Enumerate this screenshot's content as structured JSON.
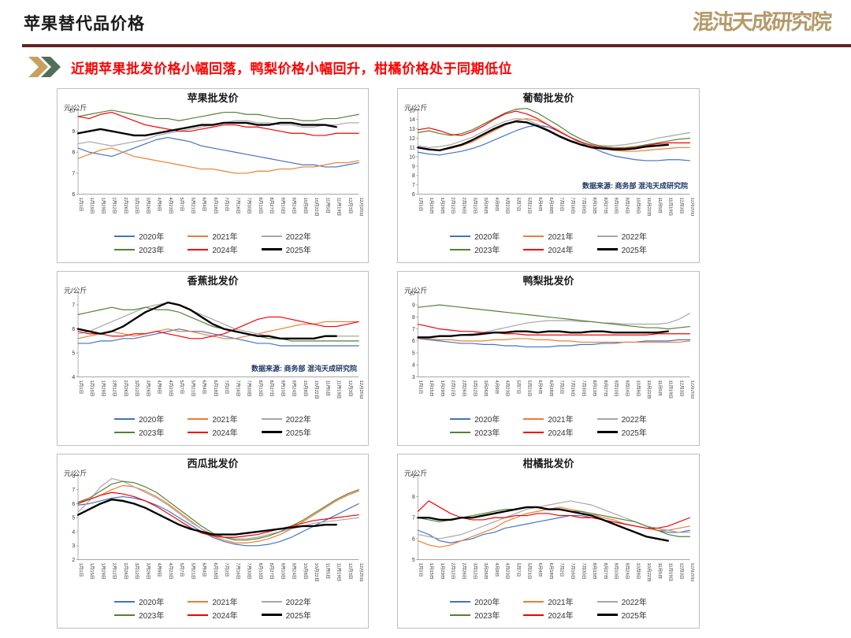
{
  "header": {
    "title": "苹果替代品价格",
    "logo_text": "混沌天成研究院",
    "divider_color": "#5e2620",
    "chevron_colors": [
      "#c9a05e",
      "#50705c"
    ]
  },
  "headline": {
    "text": "近期苹果批发价格小幅回落，鸭梨价格小幅回升，柑橘价格处于同期低位",
    "color": "#fe0000"
  },
  "chart_data": {
    "type": "line",
    "unit": "元/公斤",
    "source": "数据来源: 商务部 混沌天成研究院",
    "legend_position": "bottom",
    "grid": false,
    "categories": [
      "1月1日",
      "1月15日",
      "1月29日",
      "2月12日",
      "2月26日",
      "3月12日",
      "3月26日",
      "4月9日",
      "4月23日",
      "5月7日",
      "5月21日",
      "6月4日",
      "6月18日",
      "7月2日",
      "7月16日",
      "7月30日",
      "8月13日",
      "8月27日",
      "9月10日",
      "9月24日",
      "10月8日",
      "10月22日",
      "11月5日",
      "11月19日",
      "12月3日",
      "12月20日"
    ],
    "legend": [
      {
        "name": "2020年",
        "color": "#4472c4",
        "width": 1.2
      },
      {
        "name": "2021年",
        "color": "#ed7d31",
        "width": 1.2
      },
      {
        "name": "2022年",
        "color": "#a6a6a6",
        "width": 1.2
      },
      {
        "name": "2023年",
        "color": "#538135",
        "width": 1.2
      },
      {
        "name": "2024年",
        "color": "#f40000",
        "width": 1.2
      },
      {
        "name": "2025年",
        "color": "#000000",
        "width": 2.4
      }
    ],
    "charts": [
      {
        "title": "苹果批发价",
        "ylim": [
          6,
          10
        ],
        "show_source": false,
        "series": {
          "2020年": [
            8.2,
            8.0,
            7.9,
            7.8,
            8.0,
            8.2,
            8.4,
            8.6,
            8.7,
            8.6,
            8.5,
            8.3,
            8.2,
            8.1,
            8.0,
            7.9,
            7.8,
            7.7,
            7.6,
            7.5,
            7.4,
            7.4,
            7.3,
            7.3,
            7.4,
            7.5
          ],
          "2021年": [
            7.7,
            7.9,
            8.1,
            8.2,
            8.0,
            7.8,
            7.7,
            7.6,
            7.5,
            7.4,
            7.3,
            7.2,
            7.2,
            7.1,
            7.0,
            7.0,
            7.1,
            7.1,
            7.2,
            7.2,
            7.3,
            7.3,
            7.4,
            7.5,
            7.5,
            7.6
          ],
          "2022年": [
            8.4,
            8.5,
            8.4,
            8.3,
            8.4,
            8.5,
            8.6,
            8.8,
            8.9,
            9.0,
            9.1,
            9.2,
            9.3,
            9.4,
            9.5,
            9.5,
            9.4,
            9.4,
            9.3,
            9.3,
            9.2,
            9.2,
            9.3,
            9.3,
            9.4,
            9.4
          ],
          "2023年": [
            9.7,
            9.8,
            9.9,
            10.0,
            9.9,
            9.8,
            9.7,
            9.6,
            9.6,
            9.5,
            9.6,
            9.7,
            9.8,
            9.9,
            9.9,
            9.8,
            9.8,
            9.7,
            9.6,
            9.6,
            9.5,
            9.5,
            9.6,
            9.6,
            9.7,
            9.8
          ],
          "2024年": [
            9.7,
            9.6,
            9.8,
            9.9,
            9.7,
            9.5,
            9.3,
            9.2,
            9.1,
            9.0,
            9.0,
            9.1,
            9.2,
            9.3,
            9.3,
            9.2,
            9.2,
            9.1,
            9.0,
            8.9,
            8.9,
            8.8,
            8.8,
            8.9,
            8.9,
            8.9
          ],
          "2025年": [
            8.9,
            9.0,
            9.1,
            9.0,
            8.9,
            8.8,
            8.8,
            8.9,
            9.0,
            9.1,
            9.2,
            9.3,
            9.3,
            9.4,
            9.4,
            9.4,
            9.3,
            9.3,
            9.4,
            9.4,
            9.3,
            9.3,
            9.3,
            9.2,
            null,
            null
          ]
        }
      },
      {
        "title": "葡萄批发价",
        "ylim": [
          6,
          15
        ],
        "show_source": true,
        "series": {
          "2020年": [
            10.5,
            10.3,
            10.2,
            10.4,
            10.6,
            10.9,
            11.3,
            11.8,
            12.3,
            12.8,
            13.2,
            13.4,
            13.2,
            12.7,
            12.1,
            11.5,
            11.0,
            10.5,
            10.1,
            9.9,
            9.7,
            9.6,
            9.6,
            9.7,
            9.7,
            9.6
          ],
          "2021年": [
            11.0,
            10.8,
            10.7,
            10.9,
            11.2,
            11.6,
            12.2,
            12.8,
            13.4,
            13.9,
            14.1,
            13.9,
            13.4,
            12.8,
            12.1,
            11.6,
            11.2,
            10.9,
            10.7,
            10.6,
            10.6,
            10.7,
            10.8,
            10.9,
            11.0,
            11.0
          ],
          "2022年": [
            11.2,
            11.0,
            11.1,
            11.3,
            11.7,
            12.1,
            12.7,
            13.3,
            13.8,
            14.1,
            14.0,
            13.5,
            12.9,
            12.3,
            11.8,
            11.5,
            11.3,
            11.2,
            11.2,
            11.3,
            11.5,
            11.7,
            12.0,
            12.2,
            12.4,
            12.6
          ],
          "2023年": [
            12.6,
            12.8,
            12.5,
            12.3,
            12.5,
            12.9,
            13.5,
            14.1,
            14.7,
            15.1,
            15.2,
            14.7,
            14.0,
            13.3,
            12.5,
            11.9,
            11.4,
            11.1,
            11.0,
            11.0,
            11.1,
            11.3,
            11.5,
            11.7,
            11.9,
            12.0
          ],
          "2024年": [
            12.9,
            13.1,
            12.8,
            12.4,
            12.3,
            12.7,
            13.3,
            14.0,
            14.6,
            14.9,
            14.6,
            14.1,
            13.4,
            12.7,
            12.1,
            11.6,
            11.2,
            11.0,
            10.9,
            10.9,
            11.0,
            11.2,
            11.4,
            11.5,
            11.5,
            11.5
          ],
          "2025年": [
            11.0,
            10.8,
            10.7,
            11.0,
            11.3,
            11.8,
            12.4,
            13.0,
            13.5,
            13.8,
            13.7,
            13.3,
            12.8,
            12.2,
            11.7,
            11.3,
            11.0,
            10.9,
            10.8,
            10.8,
            10.9,
            11.1,
            11.2,
            11.3,
            null,
            null
          ]
        }
      },
      {
        "title": "香蕉批发价",
        "ylim": [
          4,
          7.5
        ],
        "show_source": true,
        "series": {
          "2020年": [
            5.4,
            5.4,
            5.5,
            5.5,
            5.6,
            5.6,
            5.7,
            5.8,
            5.9,
            6.0,
            5.9,
            5.9,
            5.8,
            5.7,
            5.6,
            5.5,
            5.4,
            5.4,
            5.3,
            5.3,
            5.3,
            5.3,
            5.3,
            5.3,
            5.3,
            5.3
          ],
          "2021年": [
            5.6,
            5.7,
            5.8,
            5.9,
            5.8,
            5.7,
            5.8,
            5.9,
            6.0,
            5.9,
            5.9,
            5.8,
            5.7,
            5.6,
            5.6,
            5.7,
            5.8,
            5.9,
            6.0,
            6.1,
            6.2,
            6.2,
            6.3,
            6.3,
            6.3,
            6.3
          ],
          "2022年": [
            5.8,
            5.9,
            6.1,
            6.3,
            6.5,
            6.7,
            6.9,
            7.0,
            7.1,
            7.0,
            6.8,
            6.6,
            6.4,
            6.2,
            6.0,
            5.9,
            5.8,
            5.7,
            5.6,
            5.6,
            5.6,
            5.6,
            5.7,
            5.7,
            5.7,
            5.7
          ],
          "2023年": [
            6.6,
            6.7,
            6.8,
            6.9,
            6.8,
            6.8,
            6.9,
            6.8,
            6.8,
            6.7,
            6.5,
            6.3,
            6.1,
            6.0,
            5.9,
            5.8,
            5.7,
            5.6,
            5.6,
            5.5,
            5.5,
            5.5,
            5.5,
            5.5,
            5.5,
            5.5
          ],
          "2024年": [
            5.9,
            5.8,
            5.8,
            5.7,
            5.7,
            5.8,
            5.8,
            5.9,
            5.8,
            5.7,
            5.6,
            5.6,
            5.7,
            5.8,
            6.0,
            6.2,
            6.4,
            6.5,
            6.5,
            6.4,
            6.3,
            6.2,
            6.1,
            6.1,
            6.2,
            6.3
          ],
          "2025年": [
            6.0,
            5.9,
            5.8,
            5.9,
            6.1,
            6.4,
            6.7,
            6.9,
            7.1,
            7.0,
            6.8,
            6.5,
            6.2,
            6.0,
            5.9,
            5.8,
            5.7,
            5.7,
            5.6,
            5.6,
            5.6,
            5.6,
            5.7,
            5.7,
            null,
            null
          ]
        }
      },
      {
        "title": "鸭梨批发价",
        "ylim": [
          3,
          10
        ],
        "show_source": false,
        "series": {
          "2020年": [
            6.2,
            6.1,
            6.0,
            5.9,
            5.8,
            5.8,
            5.7,
            5.7,
            5.6,
            5.6,
            5.5,
            5.5,
            5.5,
            5.6,
            5.6,
            5.7,
            5.7,
            5.8,
            5.8,
            5.9,
            5.9,
            6.0,
            6.0,
            6.0,
            6.1,
            6.1
          ],
          "2021年": [
            6.2,
            6.2,
            6.1,
            6.1,
            6.0,
            6.0,
            6.0,
            6.1,
            6.1,
            6.2,
            6.2,
            6.1,
            6.1,
            6.0,
            6.0,
            5.9,
            5.9,
            5.9,
            5.9,
            5.9,
            5.9,
            5.9,
            5.9,
            5.9,
            5.9,
            6.0
          ],
          "2022年": [
            6.3,
            6.3,
            6.4,
            6.4,
            6.5,
            6.6,
            6.7,
            6.9,
            7.1,
            7.3,
            7.5,
            7.6,
            7.7,
            7.7,
            7.7,
            7.6,
            7.6,
            7.5,
            7.5,
            7.4,
            7.4,
            7.4,
            7.4,
            7.5,
            7.8,
            8.3
          ],
          "2023年": [
            8.8,
            8.9,
            9.0,
            8.9,
            8.8,
            8.7,
            8.6,
            8.5,
            8.4,
            8.3,
            8.2,
            8.1,
            8.0,
            7.9,
            7.8,
            7.7,
            7.6,
            7.5,
            7.4,
            7.3,
            7.2,
            7.1,
            7.1,
            7.0,
            7.1,
            7.2
          ],
          "2024年": [
            7.4,
            7.2,
            7.0,
            6.9,
            6.8,
            6.8,
            6.7,
            6.7,
            6.6,
            6.6,
            6.5,
            6.5,
            6.5,
            6.5,
            6.5,
            6.5,
            6.5,
            6.5,
            6.5,
            6.5,
            6.5,
            6.5,
            6.6,
            6.6,
            6.6,
            6.6
          ],
          "2025年": [
            6.3,
            6.3,
            6.4,
            6.4,
            6.5,
            6.5,
            6.6,
            6.7,
            6.7,
            6.8,
            6.8,
            6.7,
            6.8,
            6.8,
            6.7,
            6.7,
            6.8,
            6.8,
            6.7,
            6.7,
            6.7,
            6.7,
            6.7,
            6.8,
            null,
            null
          ]
        }
      },
      {
        "title": "西瓜批发价",
        "ylim": [
          2,
          8
        ],
        "show_source": false,
        "series": {
          "2020年": [
            5.9,
            6.0,
            6.2,
            6.4,
            6.5,
            6.4,
            6.2,
            5.9,
            5.5,
            5.0,
            4.5,
            4.0,
            3.6,
            3.3,
            3.1,
            3.0,
            3.0,
            3.1,
            3.3,
            3.6,
            4.0,
            4.4,
            4.8,
            5.2,
            5.6,
            6.0
          ],
          "2021年": [
            6.1,
            6.3,
            6.6,
            7.0,
            7.3,
            7.2,
            6.9,
            6.5,
            6.0,
            5.4,
            4.8,
            4.2,
            3.7,
            3.4,
            3.2,
            3.2,
            3.3,
            3.5,
            3.8,
            4.2,
            4.7,
            5.2,
            5.7,
            6.2,
            6.6,
            6.9
          ],
          "2022年": [
            5.4,
            6.2,
            7.2,
            7.8,
            7.6,
            7.2,
            6.8,
            6.4,
            5.9,
            5.3,
            4.7,
            4.2,
            3.8,
            3.6,
            3.5,
            3.5,
            3.6,
            3.8,
            4.0,
            4.2,
            4.4,
            4.6,
            4.7,
            4.8,
            4.9,
            5.0
          ],
          "2023年": [
            6.1,
            6.4,
            6.9,
            7.4,
            7.6,
            7.5,
            7.2,
            6.8,
            6.2,
            5.6,
            5.0,
            4.4,
            3.9,
            3.6,
            3.4,
            3.4,
            3.5,
            3.7,
            4.0,
            4.4,
            4.8,
            5.3,
            5.8,
            6.3,
            6.7,
            7.0
          ],
          "2024年": [
            6.0,
            6.3,
            6.6,
            6.8,
            6.7,
            6.5,
            6.2,
            5.8,
            5.3,
            4.8,
            4.3,
            3.9,
            3.7,
            3.6,
            3.6,
            3.7,
            3.8,
            4.0,
            4.2,
            4.4,
            4.6,
            4.8,
            4.9,
            5.0,
            5.1,
            5.2
          ],
          "2025年": [
            5.2,
            5.6,
            6.0,
            6.3,
            6.2,
            6.0,
            5.7,
            5.3,
            4.9,
            4.5,
            4.2,
            4.0,
            3.8,
            3.8,
            3.8,
            3.9,
            4.0,
            4.1,
            4.2,
            4.3,
            4.4,
            4.4,
            4.5,
            4.5,
            null,
            null
          ]
        }
      },
      {
        "title": "柑橘批发价",
        "ylim": [
          5,
          9
        ],
        "show_source": false,
        "series": {
          "2020年": [
            6.4,
            6.2,
            5.9,
            5.8,
            5.9,
            6.0,
            6.2,
            6.3,
            6.5,
            6.6,
            6.7,
            6.8,
            6.9,
            7.0,
            7.1,
            7.1,
            7.0,
            6.9,
            6.8,
            6.7,
            6.6,
            6.5,
            6.4,
            6.3,
            6.3,
            6.4
          ],
          "2021年": [
            5.9,
            5.7,
            5.6,
            5.7,
            5.9,
            6.1,
            6.3,
            6.5,
            6.8,
            7.0,
            7.2,
            7.3,
            7.4,
            7.5,
            7.4,
            7.3,
            7.2,
            7.0,
            6.9,
            6.7,
            6.6,
            6.5,
            6.4,
            6.4,
            6.5,
            6.6
          ],
          "2022年": [
            6.2,
            6.1,
            6.0,
            6.1,
            6.2,
            6.4,
            6.6,
            6.8,
            7.0,
            7.2,
            7.4,
            7.5,
            7.6,
            7.7,
            7.8,
            7.7,
            7.6,
            7.4,
            7.2,
            7.0,
            6.8,
            6.6,
            6.5,
            6.4,
            6.3,
            6.3
          ],
          "2023年": [
            7.0,
            6.9,
            6.8,
            6.9,
            7.0,
            7.1,
            7.2,
            7.3,
            7.4,
            7.4,
            7.5,
            7.5,
            7.4,
            7.4,
            7.3,
            7.3,
            7.2,
            7.1,
            7.0,
            6.9,
            6.8,
            6.6,
            6.4,
            6.2,
            6.1,
            6.1
          ],
          "2024年": [
            7.3,
            7.8,
            7.5,
            7.2,
            7.0,
            6.9,
            6.9,
            7.0,
            7.0,
            7.1,
            7.1,
            7.2,
            7.2,
            7.1,
            7.1,
            7.0,
            7.0,
            6.9,
            6.8,
            6.7,
            6.6,
            6.5,
            6.5,
            6.6,
            6.8,
            7.0
          ],
          "2025年": [
            7.0,
            7.0,
            6.9,
            6.9,
            7.0,
            7.0,
            7.1,
            7.2,
            7.3,
            7.4,
            7.5,
            7.5,
            7.4,
            7.4,
            7.3,
            7.2,
            7.1,
            6.9,
            6.7,
            6.5,
            6.3,
            6.1,
            6.0,
            5.9,
            null,
            null
          ]
        }
      }
    ]
  }
}
